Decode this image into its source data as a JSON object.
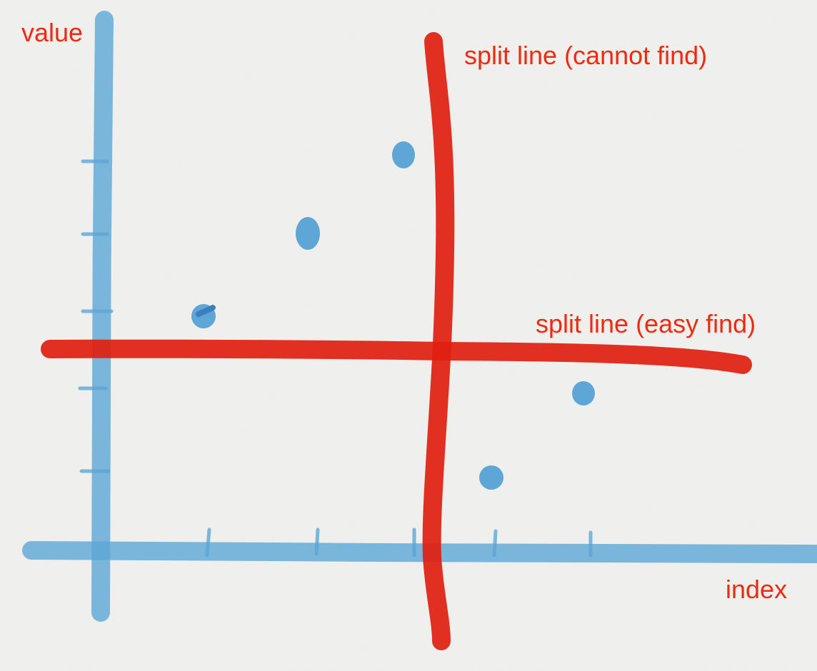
{
  "labels": {
    "y_axis": "value",
    "x_axis": "index",
    "vertical_split": "split line (cannot find)",
    "horizontal_split": "split line (easy find)"
  },
  "colors": {
    "axis": "#5da6d6",
    "points": "#5da6d6",
    "split_lines": "#e02010",
    "label_text": "#ee2a10",
    "background": "#f1f1ef"
  },
  "chart_data": {
    "type": "scatter",
    "title": "",
    "xlabel": "index",
    "ylabel": "value",
    "x": [
      1,
      2,
      3,
      4,
      5
    ],
    "y": [
      3,
      4,
      5,
      1,
      2
    ],
    "split_lines": [
      {
        "orientation": "vertical",
        "label": "split line (cannot find)"
      },
      {
        "orientation": "horizontal",
        "label": "split line (easy find)"
      }
    ]
  }
}
